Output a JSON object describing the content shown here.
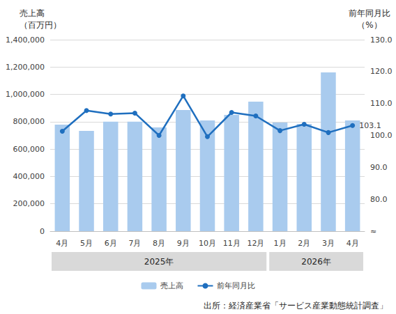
{
  "chart_data": {
    "type": "bar",
    "ylabel": [
      "売上高",
      "（百万円）"
    ],
    "y2label": [
      "前年同月比",
      "（%）"
    ],
    "categories": [
      "4月",
      "5月",
      "6月",
      "7月",
      "8月",
      "9月",
      "10月",
      "11月",
      "12月",
      "1月",
      "2月",
      "3月",
      "4月"
    ],
    "groups": [
      {
        "label": "2025年",
        "count": 9
      },
      {
        "label": "2026年",
        "count": 4
      }
    ],
    "series": [
      {
        "name": "売上高",
        "type": "bar",
        "color": "#a9cbee",
        "values": [
          779000,
          733000,
          800000,
          800000,
          758000,
          886000,
          810000,
          850000,
          947000,
          794000,
          784000,
          1161000,
          810000
        ]
      },
      {
        "name": "前年同月比",
        "type": "line",
        "axis": "y2",
        "color": "#1f6fbf",
        "marker": "circle",
        "values": [
          101.3,
          107.8,
          106.7,
          107.0,
          100.0,
          112.4,
          99.6,
          107.2,
          106.1,
          101.5,
          103.5,
          100.9,
          103.1
        ],
        "value_labels": [
          null,
          null,
          null,
          null,
          null,
          null,
          null,
          null,
          null,
          null,
          null,
          null,
          "103.1"
        ]
      }
    ],
    "ylim": [
      0,
      1400000
    ],
    "yticks": [
      0,
      {
        "value": 200000,
        "label": "200,000"
      },
      {
        "value": 400000,
        "label": "400,000"
      },
      {
        "value": 600000,
        "label": "600,000"
      },
      {
        "value": 800000,
        "label": "800,000"
      },
      {
        "value": 1000000,
        "label": "1,000,000"
      },
      {
        "value": 1200000,
        "label": "1,200,000"
      },
      {
        "value": 1400000,
        "label": "1,400,000"
      }
    ],
    "y2lim": [
      70,
      130
    ],
    "y2ticks": [
      {
        "value": 70,
        "label": "≈"
      },
      {
        "value": 80,
        "label": "80.0"
      },
      {
        "value": 90,
        "label": "90.0"
      },
      {
        "value": 100,
        "label": "100.0"
      },
      {
        "value": 110,
        "label": "110.0"
      },
      {
        "value": 120,
        "label": "120.0"
      },
      {
        "value": 130,
        "label": "130.0"
      }
    ],
    "grid": true,
    "legend": "bottom",
    "source": "出所：経済産業省「サービス産業動態統計調査」"
  }
}
